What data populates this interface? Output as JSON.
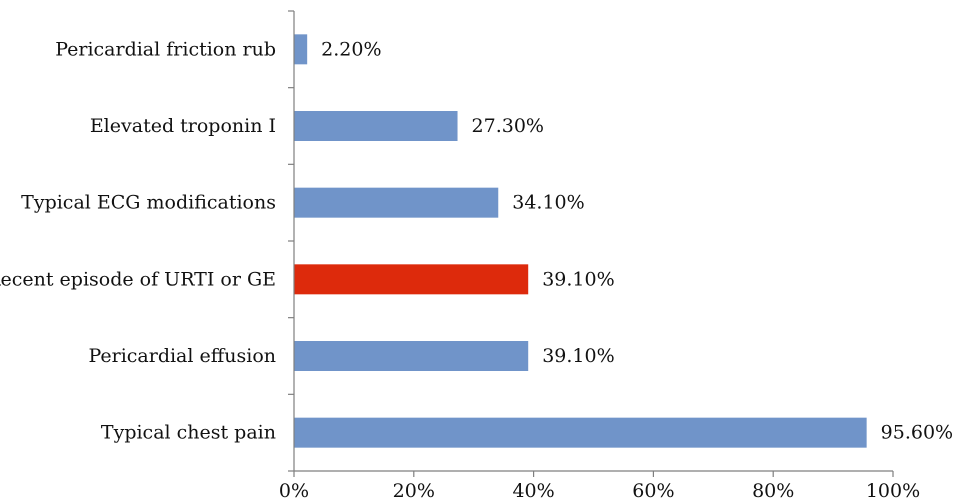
{
  "chart_data": {
    "type": "bar",
    "orientation": "horizontal",
    "categories": [
      "Pericardial friction rub",
      "Elevated troponin I",
      "Typical ECG modifications",
      "Recent episode of URTI or GE",
      "Pericardial effusion",
      "Typical chest pain"
    ],
    "values": [
      2.2,
      27.3,
      34.1,
      39.1,
      39.1,
      95.6
    ],
    "value_labels": [
      "2.20%",
      "27.30%",
      "34.10%",
      "39.10%",
      "39.10%",
      "95.60%"
    ],
    "bar_colors": [
      "#7094c9",
      "#7094c9",
      "#7094c9",
      "#dd2a0c",
      "#7094c9",
      "#7094c9"
    ],
    "xlim": [
      0,
      100
    ],
    "xticks": [
      0,
      20,
      40,
      60,
      80,
      100
    ],
    "xtick_labels": [
      "0%",
      "20%",
      "40%",
      "60%",
      "80%",
      "100%"
    ],
    "title": "",
    "xlabel": "",
    "ylabel": "",
    "grid": false,
    "legend": "none"
  }
}
